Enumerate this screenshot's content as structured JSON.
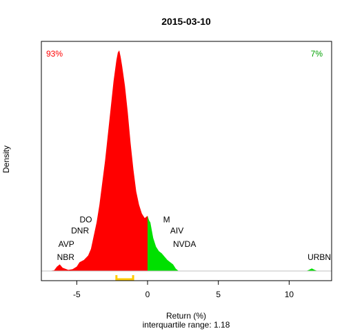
{
  "chart_data": {
    "type": "area",
    "title": "2015-03-10",
    "xlabel": "Return (%)",
    "subtitle": "interquartile range: 1.18",
    "ylabel": "Density",
    "xlim": [
      -7.5,
      13
    ],
    "ylim": [
      0,
      1.0
    ],
    "xticks": [
      -5,
      0,
      5,
      10
    ],
    "pct_negative": "93%",
    "pct_positive": "7%",
    "colors": {
      "negative": "#ff0000",
      "positive": "#00e000",
      "iqr": "#ffcc00",
      "axis": "#000000",
      "baseline": "#c0c0c0"
    },
    "iqr_range": [
      -2.2,
      -1.02
    ],
    "density_points": [
      [
        -7.0,
        0.0
      ],
      [
        -6.6,
        0.003
      ],
      [
        -6.4,
        0.02
      ],
      [
        -6.2,
        0.03
      ],
      [
        -6.0,
        0.015
      ],
      [
        -5.6,
        0.005
      ],
      [
        -5.3,
        0.008
      ],
      [
        -5.0,
        0.02
      ],
      [
        -4.8,
        0.04
      ],
      [
        -4.5,
        0.05
      ],
      [
        -4.2,
        0.07
      ],
      [
        -4.0,
        0.1
      ],
      [
        -3.8,
        0.16
      ],
      [
        -3.6,
        0.22
      ],
      [
        -3.4,
        0.3
      ],
      [
        -3.2,
        0.4
      ],
      [
        -3.0,
        0.5
      ],
      [
        -2.8,
        0.62
      ],
      [
        -2.6,
        0.74
      ],
      [
        -2.4,
        0.86
      ],
      [
        -2.2,
        0.955
      ],
      [
        -2.1,
        0.99
      ],
      [
        -2.0,
        1.0
      ],
      [
        -1.9,
        0.97
      ],
      [
        -1.8,
        0.93
      ],
      [
        -1.6,
        0.84
      ],
      [
        -1.4,
        0.72
      ],
      [
        -1.2,
        0.58
      ],
      [
        -1.0,
        0.46
      ],
      [
        -0.8,
        0.36
      ],
      [
        -0.6,
        0.3
      ],
      [
        -0.4,
        0.26
      ],
      [
        -0.2,
        0.24
      ],
      [
        0.0,
        0.25
      ],
      [
        0.1,
        0.23
      ],
      [
        0.2,
        0.22
      ],
      [
        0.4,
        0.15
      ],
      [
        0.6,
        0.11
      ],
      [
        0.8,
        0.09
      ],
      [
        1.0,
        0.08
      ],
      [
        1.2,
        0.065
      ],
      [
        1.4,
        0.05
      ],
      [
        1.6,
        0.04
      ],
      [
        1.8,
        0.03
      ],
      [
        2.0,
        0.01
      ],
      [
        2.2,
        0.0
      ],
      [
        11.2,
        0.0
      ],
      [
        11.4,
        0.005
      ],
      [
        11.6,
        0.012
      ],
      [
        11.8,
        0.005
      ],
      [
        12.0,
        0.0
      ]
    ],
    "annotations": [
      {
        "text": "DO",
        "x": -4.8,
        "y": 0.22
      },
      {
        "text": "DNR",
        "x": -5.4,
        "y": 0.17
      },
      {
        "text": "AVP",
        "x": -6.3,
        "y": 0.11
      },
      {
        "text": "NBR",
        "x": -6.4,
        "y": 0.05
      },
      {
        "text": "M",
        "x": 1.1,
        "y": 0.22
      },
      {
        "text": "AIV",
        "x": 1.6,
        "y": 0.17
      },
      {
        "text": "NVDA",
        "x": 1.8,
        "y": 0.11
      },
      {
        "text": "URBN",
        "x": 11.3,
        "y": 0.05
      }
    ]
  }
}
